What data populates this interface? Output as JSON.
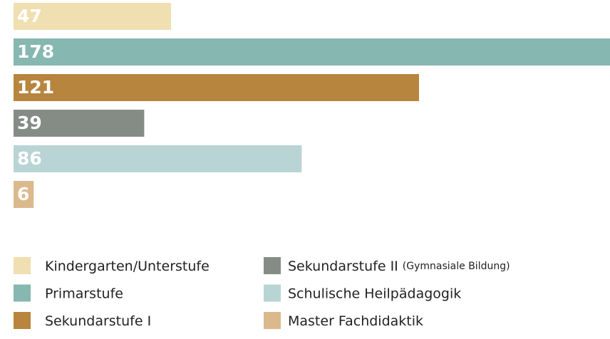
{
  "chart_data": {
    "type": "bar",
    "orientation": "horizontal",
    "categories": [
      "Kindergarten/Unterstufe",
      "Primarstufe",
      "Sekundarstufe I",
      "Sekundarstufe II",
      "Schulische Heilpädagogik",
      "Master Fachdidaktik"
    ],
    "category_details": [
      null,
      null,
      null,
      "(Gymnasiale Bildung)",
      null,
      null
    ],
    "values": [
      47,
      178,
      121,
      39,
      86,
      6
    ],
    "colors": [
      "#f0dfb0",
      "#86b7b0",
      "#b8853e",
      "#858c86",
      "#b9d4d5",
      "#dbb98d"
    ],
    "legend": "bottom"
  }
}
